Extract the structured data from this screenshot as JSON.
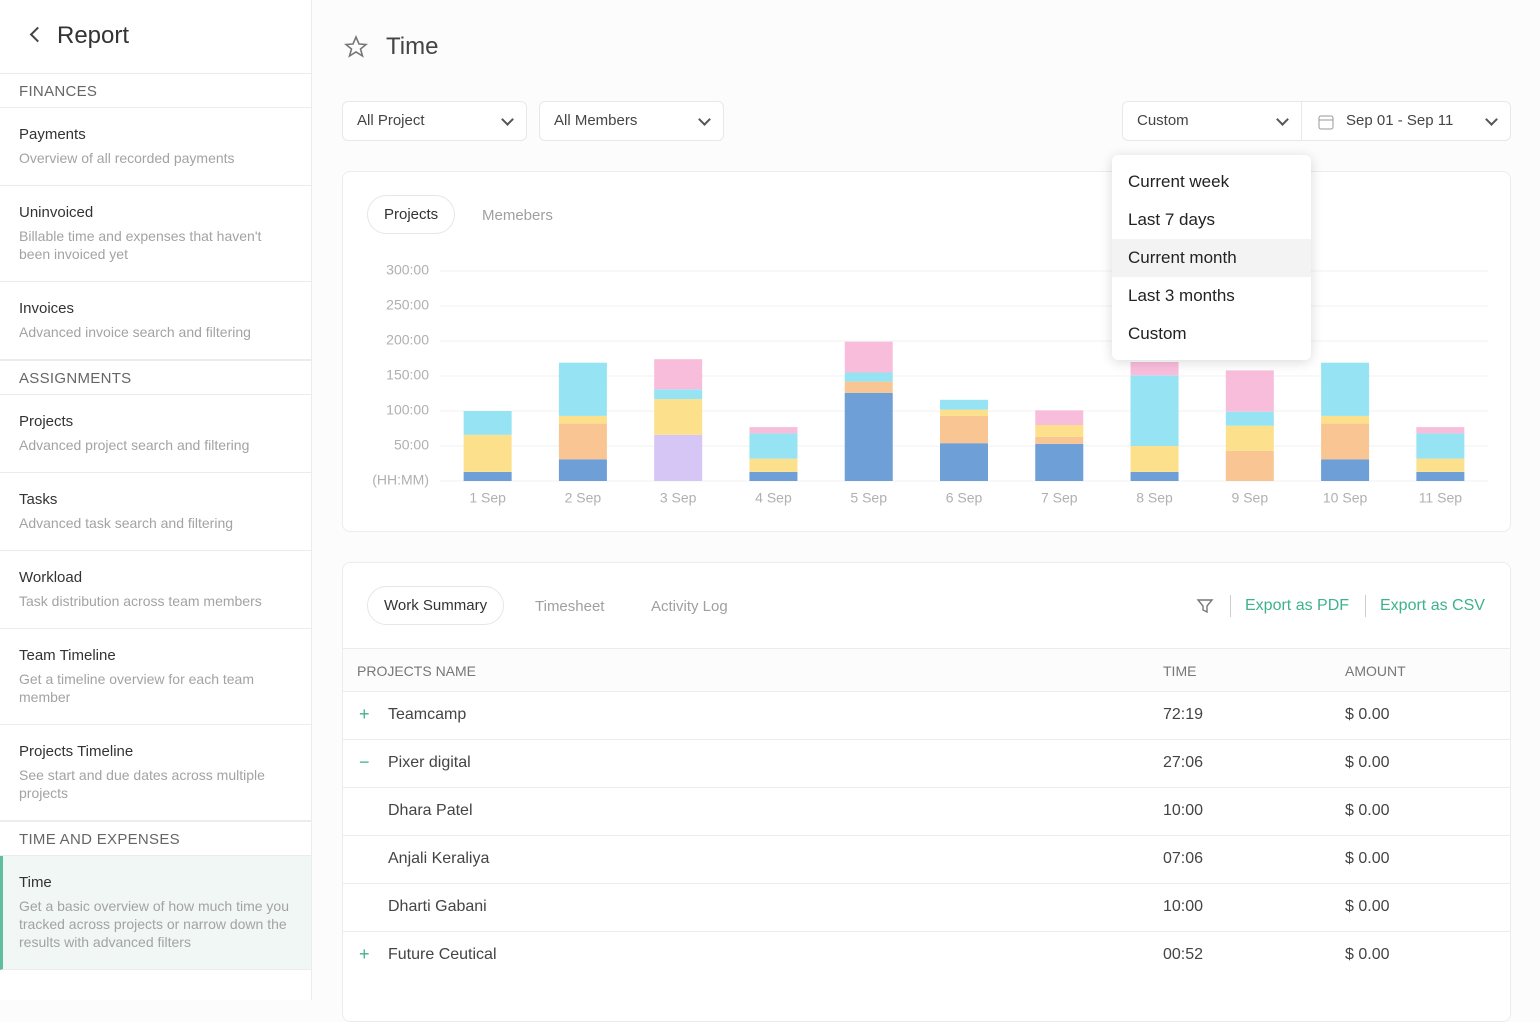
{
  "sidebar": {
    "title": "Report",
    "sections": [
      {
        "heading": "FINANCES",
        "items": [
          {
            "title": "Payments",
            "desc": "Overview of all recorded payments"
          },
          {
            "title": "Uninvoiced",
            "desc": "Billable time and expenses that haven't been invoiced yet"
          },
          {
            "title": "Invoices",
            "desc": "Advanced invoice search and filtering"
          }
        ]
      },
      {
        "heading": "ASSIGNMENTS",
        "items": [
          {
            "title": "Projects",
            "desc": "Advanced project search and filtering"
          },
          {
            "title": "Tasks",
            "desc": "Advanced task search and filtering"
          },
          {
            "title": "Workload",
            "desc": "Task distribution across team members"
          },
          {
            "title": "Team Timeline",
            "desc": "Get a timeline overview for each team member"
          },
          {
            "title": "Projects Timeline",
            "desc": "See start and due dates across multiple projects"
          }
        ]
      },
      {
        "heading": "TIME AND EXPENSES",
        "items": [
          {
            "title": "Time",
            "desc": "Get a basic overview of how much time you tracked across projects or narrow down the results with advanced filters"
          }
        ]
      }
    ]
  },
  "header": {
    "title": "Time"
  },
  "filters": {
    "project": "All Project",
    "members": "All Members",
    "range": "Custom",
    "dates": "Sep 01 - Sep 11"
  },
  "dropdown": [
    "Current week",
    "Last 7 days",
    "Current month",
    "Last 3 months",
    "Custom"
  ],
  "chart_tabs": [
    "Projects",
    "Memebers"
  ],
  "chart_data": {
    "type": "stacked-bar",
    "categories": [
      "1 Sep",
      "2 Sep",
      "3 Sep",
      "4 Sep",
      "5 Sep",
      "6 Sep",
      "7 Sep",
      "8 Sep",
      "9 Sep",
      "10 Sep",
      "11 Sep"
    ],
    "series": [
      {
        "color": "#6e9fd6",
        "values": [
          13,
          31,
          null,
          13,
          126,
          54,
          53,
          13,
          null,
          31,
          13
        ]
      },
      {
        "color": "#d5c6f6",
        "values": [
          null,
          null,
          66,
          null,
          null,
          null,
          null,
          null,
          null,
          null,
          null
        ]
      },
      {
        "color": "#f9c592",
        "values": [
          null,
          51,
          null,
          null,
          16,
          39,
          10,
          null,
          43,
          51,
          null
        ]
      },
      {
        "color": "#fce08c",
        "values": [
          53,
          11,
          51,
          19,
          null,
          9,
          17,
          37,
          36,
          11,
          19
        ]
      },
      {
        "color": "#96e4f3",
        "values": [
          34,
          76,
          14,
          36,
          13,
          14,
          null,
          101,
          20,
          76,
          36
        ]
      },
      {
        "color": "#f8bddb",
        "values": [
          null,
          null,
          43,
          9,
          44,
          null,
          21,
          19,
          59,
          null,
          9
        ]
      }
    ],
    "ylim": [
      0,
      300
    ],
    "yticks": [
      {
        "value": 0,
        "label": "(HH:MM)"
      },
      {
        "value": 50,
        "label": "50:00"
      },
      {
        "value": 100,
        "label": "100:00"
      },
      {
        "value": 150,
        "label": "150:00"
      },
      {
        "value": 200,
        "label": "200:00"
      },
      {
        "value": 250,
        "label": "250:00"
      },
      {
        "value": 300,
        "label": "300:00"
      }
    ],
    "grid": true
  },
  "table": {
    "tabs": [
      "Work Summary",
      "Timesheet",
      "Activity Log"
    ],
    "actions": [
      "Export as PDF",
      "Export as CSV"
    ],
    "columns": [
      "PROJECTS NAME",
      "TIME",
      "AMOUNT"
    ],
    "rows": [
      [
        "Teamcamp",
        "72:19",
        "$ 0.00"
      ],
      [
        "Pixer digital",
        "27:06",
        "$ 0.00"
      ],
      [
        "Dhara Patel",
        "10:00",
        "$ 0.00"
      ],
      [
        "Anjali Keraliya",
        "07:06",
        "$ 0.00"
      ],
      [
        "Dharti Gabani",
        "10:00",
        "$ 0.00"
      ],
      [
        "Future Ceutical",
        "00:52",
        "$ 0.00"
      ]
    ]
  }
}
